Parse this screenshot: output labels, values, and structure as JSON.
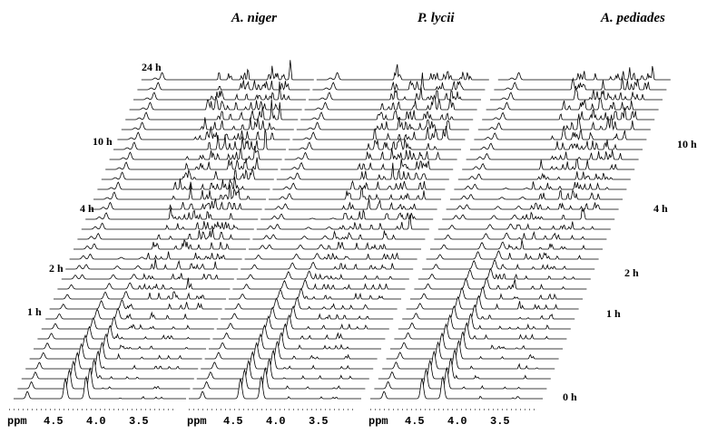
{
  "panels": [
    {
      "title": "A. niger",
      "time_labels": [
        "24 h",
        "10 h",
        "4 h",
        "2 h",
        "1 h"
      ],
      "axis": {
        "unit": "ppm",
        "ticks": [
          "4.5",
          "4.0",
          "3.5"
        ]
      }
    },
    {
      "title": "P. lycii",
      "axis": {
        "unit": "ppm",
        "ticks": [
          "4.5",
          "4.0",
          "3.5"
        ]
      }
    },
    {
      "title": "A. pediades",
      "time_labels": [
        "10 h",
        "4 h",
        "2 h",
        "1 h",
        "0 h"
      ],
      "axis": {
        "unit": "ppm",
        "ticks": [
          "4.5",
          "4.0",
          "3.5"
        ]
      }
    }
  ]
}
